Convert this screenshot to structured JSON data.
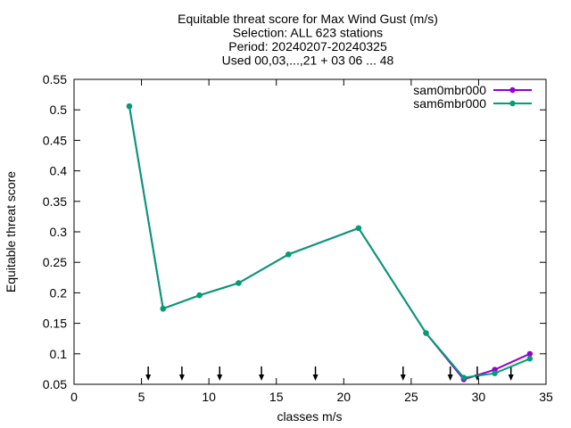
{
  "chart_data": {
    "type": "line",
    "title_lines": [
      "Equitable threat score  for Max Wind Gust (m/s)",
      "Selection: ALL    623 stations",
      "Period: 20240207-20240325",
      "Used 00,03,...,21 + 03 06 ... 48"
    ],
    "xlabel": "classes m/s",
    "ylabel": "Equitable threat score",
    "xlim": [
      0,
      35
    ],
    "ylim": [
      0.05,
      0.55
    ],
    "xticks": [
      0,
      5,
      10,
      15,
      20,
      25,
      30,
      35
    ],
    "xtick_labels": [
      "0",
      "5",
      "10",
      "15",
      "20",
      "25",
      "30",
      "35"
    ],
    "yticks": [
      0.05,
      0.1,
      0.15,
      0.2,
      0.25,
      0.3,
      0.35,
      0.4,
      0.45,
      0.5,
      0.55
    ],
    "ytick_labels": [
      "0.05",
      "0.1",
      "0.15",
      "0.2",
      "0.25",
      "0.3",
      "0.35",
      "0.4",
      "0.45",
      "0.5",
      "0.55"
    ],
    "grid": false,
    "legend_position": "top-right",
    "series": [
      {
        "name": "sam0mbr000",
        "color": "#9400d3",
        "x": [
          4.1,
          6.6,
          9.3,
          12.2,
          15.9,
          21.1,
          26.1,
          28.9,
          31.2,
          33.8
        ],
        "y": [
          0.506,
          0.174,
          0.196,
          0.216,
          0.263,
          0.306,
          0.134,
          0.058,
          0.074,
          0.1
        ]
      },
      {
        "name": "sam6mbr000",
        "color": "#009e73",
        "x": [
          4.1,
          6.6,
          9.3,
          12.2,
          15.9,
          21.1,
          26.1,
          28.9,
          31.2,
          33.8
        ],
        "y": [
          0.506,
          0.174,
          0.196,
          0.216,
          0.263,
          0.306,
          0.134,
          0.061,
          0.068,
          0.092
        ]
      }
    ],
    "threshold_arrows_x": [
      5.5,
      8.0,
      10.8,
      13.9,
      17.9,
      24.4,
      27.9,
      29.9,
      32.4
    ]
  }
}
